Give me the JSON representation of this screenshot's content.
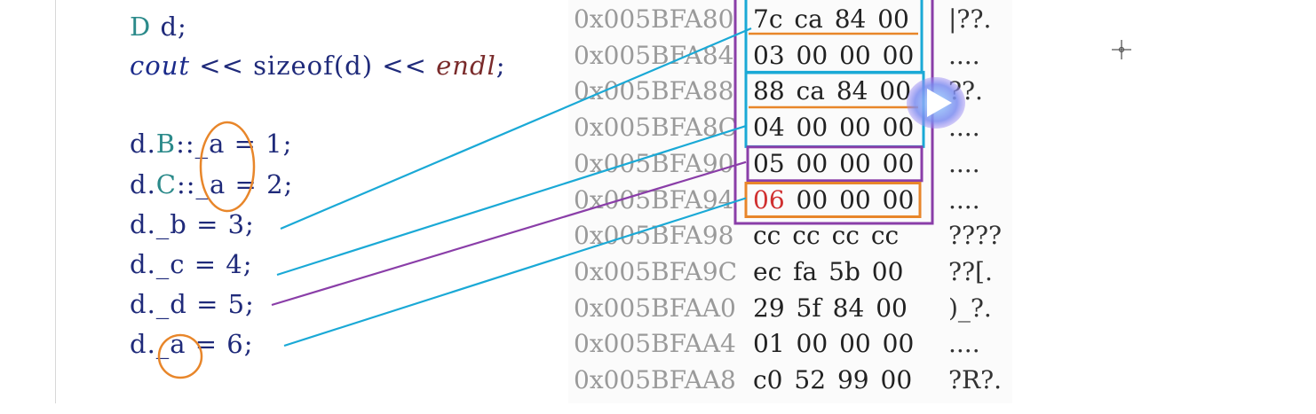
{
  "code": {
    "lines": [
      {
        "parts": [
          {
            "t": "D",
            "k": "type"
          },
          {
            "t": " d;",
            "k": "plain"
          }
        ]
      },
      {
        "parts": [
          {
            "t": "cout",
            "k": "kw"
          },
          {
            "t": " << sizeof(d) << ",
            "k": "plain"
          },
          {
            "t": "endl",
            "k": "endl"
          },
          {
            "t": ";",
            "k": "plain"
          }
        ]
      },
      {
        "parts": [
          {
            "t": "",
            "k": "plain"
          }
        ]
      },
      {
        "parts": [
          {
            "t": "d.",
            "k": "plain"
          },
          {
            "t": "B",
            "k": "type"
          },
          {
            "t": "::_a = 1;",
            "k": "plain"
          }
        ]
      },
      {
        "parts": [
          {
            "t": "d.",
            "k": "plain"
          },
          {
            "t": "C",
            "k": "type"
          },
          {
            "t": "::_a = 2;",
            "k": "plain"
          }
        ]
      },
      {
        "parts": [
          {
            "t": "d._b = 3;",
            "k": "plain"
          }
        ]
      },
      {
        "parts": [
          {
            "t": "d._c = 4;",
            "k": "plain"
          }
        ]
      },
      {
        "parts": [
          {
            "t": "d._d = 5;",
            "k": "plain"
          }
        ]
      },
      {
        "parts": [
          {
            "t": "d._a = 6;",
            "k": "plain"
          }
        ]
      }
    ]
  },
  "memory": {
    "rows": [
      {
        "address": "0x005BFA80",
        "bytes": [
          "7c",
          "ca",
          "84",
          "00"
        ],
        "ascii": "|??."
      },
      {
        "address": "0x005BFA84",
        "bytes": [
          "03",
          "00",
          "00",
          "00"
        ],
        "ascii": "...."
      },
      {
        "address": "0x005BFA88",
        "bytes": [
          "88",
          "ca",
          "84",
          "00"
        ],
        "ascii": "??."
      },
      {
        "address": "0x005BFA8C",
        "bytes": [
          "04",
          "00",
          "00",
          "00"
        ],
        "ascii": "...."
      },
      {
        "address": "0x005BFA90",
        "bytes": [
          "05",
          "00",
          "00",
          "00"
        ],
        "ascii": "...."
      },
      {
        "address": "0x005BFA94",
        "bytes": [
          "06",
          "00",
          "00",
          "00"
        ],
        "ascii": "...."
      },
      {
        "address": "0x005BFA98",
        "bytes": [
          "cc",
          "cc",
          "cc",
          "cc"
        ],
        "ascii": "????"
      },
      {
        "address": "0x005BFA9C",
        "bytes": [
          "ec",
          "fa",
          "5b",
          "00"
        ],
        "ascii": "??[."
      },
      {
        "address": "0x005BFAA0",
        "bytes": [
          "29",
          "5f",
          "84",
          "00"
        ],
        "ascii": ")_?."
      },
      {
        "address": "0x005BFAA4",
        "bytes": [
          "01",
          "00",
          "00",
          "00"
        ],
        "ascii": "...."
      },
      {
        "address": "0x005BFAA8",
        "bytes": [
          "c0",
          "52",
          "99",
          "00"
        ],
        "ascii": "?R?."
      }
    ],
    "highlighted_byte": {
      "row": 5,
      "index": 0
    }
  },
  "annotations": {
    "colors": {
      "cyan": "#1aa9d6",
      "orange": "#e8862a",
      "purple": "#8a3ea8",
      "red": "#d03030"
    },
    "links": [
      {
        "from_code_line": 5,
        "to_memory_row": 1,
        "color": "cyan"
      },
      {
        "from_code_line": 6,
        "to_memory_row": 3,
        "color": "cyan"
      },
      {
        "from_code_line": 7,
        "to_memory_row": 4,
        "color": "purple"
      },
      {
        "from_code_line": 8,
        "to_memory_row": 5,
        "color": "cyan"
      }
    ]
  },
  "icons": {
    "cursor": "crosshair-cursor-icon",
    "overlay": "play-button-icon"
  }
}
